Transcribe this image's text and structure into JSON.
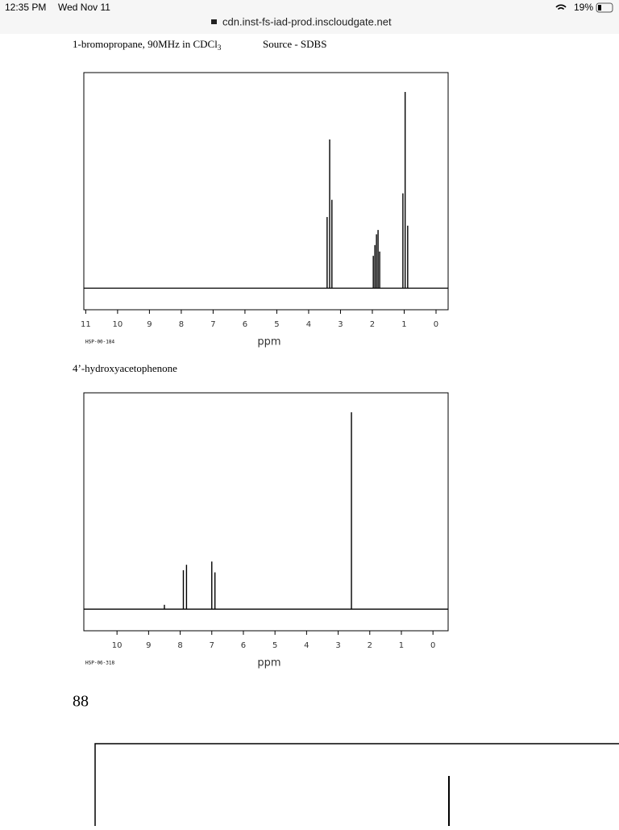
{
  "status_bar": {
    "time": "12:35 PM",
    "date": "Wed Nov 11",
    "url": "cdn.inst-fs-iad-prod.inscloudgate.net",
    "battery": "19%"
  },
  "chart_data": [
    {
      "type": "line",
      "title": "1-bromopropane, 90MHz in CDCl",
      "title_subscript": "3",
      "source": "Source - SDBS",
      "x_label": "ppm",
      "code": "HSP-00-184",
      "color": "#000000",
      "x": [
        3.42,
        3.34,
        3.27,
        1.97,
        1.92,
        1.87,
        1.82,
        1.77,
        1.04,
        0.97,
        0.89
      ],
      "values": [
        33,
        69,
        41,
        15,
        20,
        25,
        27,
        17,
        44,
        91,
        29
      ],
      "xlim": [
        11.06,
        -0.38
      ],
      "ylim": [
        -10,
        100
      ],
      "xticks": [
        11,
        10,
        9,
        8,
        7,
        6,
        5,
        4,
        3,
        2,
        1,
        0
      ]
    },
    {
      "type": "line",
      "title": "4’-hydroxyacetophenone",
      "x_label": "ppm",
      "code": "HSP-06-318",
      "color": "#000000",
      "x": [
        8.5,
        7.9,
        7.8,
        7.0,
        6.9,
        2.58
      ],
      "values": [
        2,
        18,
        20.5,
        22,
        17,
        91
      ],
      "xlim": [
        11.05,
        -0.48
      ],
      "ylim": [
        -10,
        100
      ],
      "xticks": [
        10,
        9,
        8,
        7,
        6,
        5,
        4,
        3,
        2,
        1,
        0
      ]
    }
  ],
  "page_number": "88"
}
